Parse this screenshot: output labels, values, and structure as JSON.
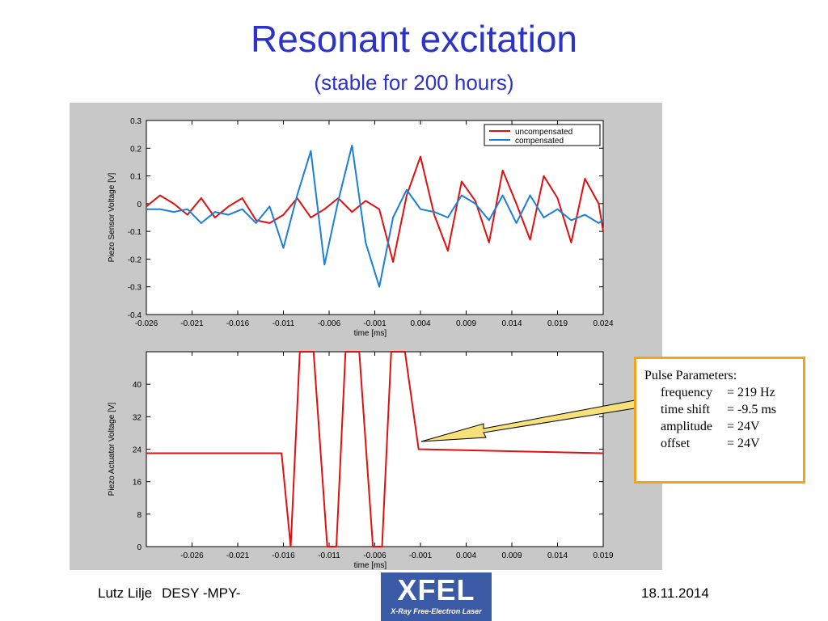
{
  "slide": {
    "title": "Resonant excitation",
    "subtitle": "(stable for 200 hours)"
  },
  "callout": {
    "heading": "Pulse Parameters:",
    "params": [
      {
        "key": "frequency",
        "value": "= 219 Hz"
      },
      {
        "key": "time shift",
        "value": "= -9.5 ms"
      },
      {
        "key": "amplitude",
        "value": "= 24V"
      },
      {
        "key": "offset",
        "value": "= 24V"
      }
    ],
    "border_color": "#f5a21b"
  },
  "footer": {
    "author": "Lutz Lilje",
    "affiliation": "DESY -MPY-",
    "date": "18.11.2014",
    "logo_text": "XFEL",
    "logo_subtext": "X-Ray Free-Electron Laser",
    "logo_color": "#3b5aa6"
  },
  "chart_data": [
    {
      "type": "line",
      "xlabel": "time [ms]",
      "ylabel": "Piezo Sensor Voltage [V]",
      "xlim": [
        -0.026,
        0.024
      ],
      "ylim": [
        -0.4,
        0.3
      ],
      "xticks": [
        "-0.026",
        "-0.021",
        "-0.016",
        "-0.011",
        "-0.006",
        "-0.001",
        "0.004",
        "0.009",
        "0.014",
        "0.019",
        "0.024"
      ],
      "yticks": [
        "0.3",
        "0.2",
        "0.1",
        "0",
        "-0.1",
        "-0.2",
        "-0.3",
        "-0.4"
      ],
      "legend_position": "top-right",
      "series": [
        {
          "name": "uncompensated",
          "color": "#e01010",
          "x": [
            -0.026,
            -0.0245,
            -0.023,
            -0.0215,
            -0.02,
            -0.0185,
            -0.017,
            -0.0155,
            -0.014,
            -0.0125,
            -0.011,
            -0.0095,
            -0.008,
            -0.0065,
            -0.005,
            -0.0035,
            -0.002,
            -0.0005,
            0.001,
            0.0025,
            0.004,
            0.0055,
            0.007,
            0.0085,
            0.01,
            0.0115,
            0.013,
            0.0145,
            0.016,
            0.0175,
            0.019,
            0.0205,
            0.022,
            0.0235,
            0.024
          ],
          "y": [
            -0.01,
            0.03,
            0.0,
            -0.04,
            0.02,
            -0.05,
            -0.01,
            0.02,
            -0.06,
            -0.07,
            -0.04,
            0.02,
            -0.05,
            -0.02,
            0.02,
            -0.03,
            0.01,
            -0.02,
            -0.21,
            0.03,
            0.17,
            -0.04,
            -0.17,
            0.08,
            0.01,
            -0.14,
            0.12,
            0.0,
            -0.13,
            0.1,
            0.02,
            -0.14,
            0.09,
            0.0,
            -0.1
          ]
        },
        {
          "name": "compensated",
          "color": "#1a7fd6",
          "x": [
            -0.026,
            -0.0245,
            -0.023,
            -0.0215,
            -0.02,
            -0.0185,
            -0.017,
            -0.0155,
            -0.014,
            -0.0125,
            -0.011,
            -0.0095,
            -0.008,
            -0.0065,
            -0.005,
            -0.0035,
            -0.002,
            -0.0005,
            0.001,
            0.0025,
            0.004,
            0.0055,
            0.007,
            0.0085,
            0.01,
            0.0115,
            0.013,
            0.0145,
            0.016,
            0.0175,
            0.019,
            0.0205,
            0.022,
            0.0235,
            0.024
          ],
          "y": [
            -0.02,
            -0.02,
            -0.03,
            -0.02,
            -0.07,
            -0.03,
            -0.04,
            -0.02,
            -0.07,
            -0.01,
            -0.16,
            0.03,
            0.19,
            -0.22,
            0.01,
            0.21,
            -0.14,
            -0.3,
            -0.05,
            0.05,
            -0.02,
            -0.03,
            -0.05,
            0.03,
            0.0,
            -0.06,
            0.03,
            -0.07,
            0.03,
            -0.05,
            -0.02,
            -0.06,
            -0.04,
            -0.07,
            -0.06
          ]
        }
      ]
    },
    {
      "type": "line",
      "xlabel": "time [ms]",
      "ylabel": "Piezo Actuator Voltage [V]",
      "xlim": [
        -0.031,
        0.019
      ],
      "ylim": [
        0,
        48
      ],
      "xticks": [
        "-0.026",
        "-0.021",
        "-0.016",
        "-0.011",
        "-0.006",
        "-0.001",
        "0.004",
        "0.009",
        "0.014",
        "0.019"
      ],
      "yticks": [
        "40",
        "32",
        "24",
        "16",
        "8",
        "0"
      ],
      "series": [
        {
          "name": "",
          "color": "#e01010",
          "x": [
            -0.031,
            -0.0162,
            -0.0152,
            -0.0142,
            -0.0127,
            -0.0112,
            -0.0102,
            -0.0092,
            -0.0077,
            -0.0062,
            -0.0052,
            -0.0042,
            -0.0027,
            -0.0012,
            0.019
          ],
          "y": [
            23,
            23,
            0,
            48,
            48,
            0,
            0,
            48,
            48,
            0,
            0,
            48,
            48,
            24,
            23
          ]
        }
      ]
    }
  ]
}
